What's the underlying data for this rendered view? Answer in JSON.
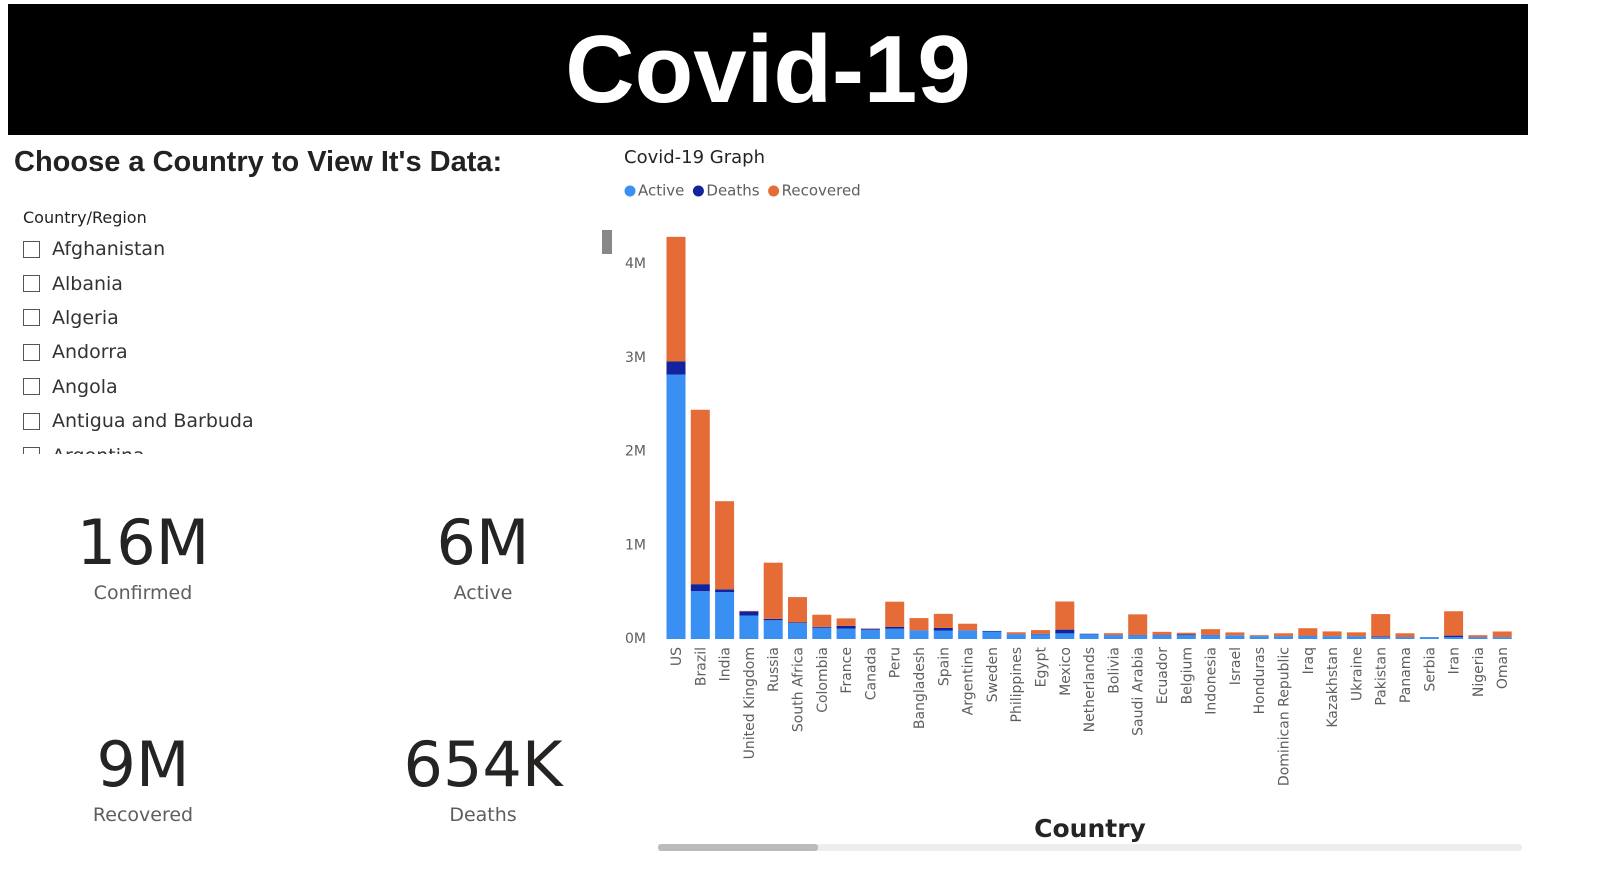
{
  "header": {
    "title": "Covid-19"
  },
  "slicer": {
    "heading": "Choose a Country to View It's Data:",
    "field": "Country/Region",
    "items": [
      "Afghanistan",
      "Albania",
      "Algeria",
      "Andorra",
      "Angola",
      "Antigua and Barbuda",
      "Argentina"
    ]
  },
  "cards": [
    {
      "value": "16M",
      "label": "Confirmed"
    },
    {
      "value": "6M",
      "label": "Active"
    },
    {
      "value": "9M",
      "label": "Recovered"
    },
    {
      "value": "654K",
      "label": "Deaths"
    }
  ],
  "chart_data": {
    "type": "stacked_bar",
    "title": "Covid-19 Graph",
    "x_label": "Country",
    "categories": [
      "US",
      "Brazil",
      "India",
      "United Kingdom",
      "Russia",
      "South Africa",
      "Colombia",
      "France",
      "Canada",
      "Peru",
      "Bangladesh",
      "Spain",
      "Argentina",
      "Sweden",
      "Philippines",
      "Egypt",
      "Mexico",
      "Netherlands",
      "Bolivia",
      "Saudi Arabia",
      "Ecuador",
      "Belgium",
      "Indonesia",
      "Israel",
      "Honduras",
      "Dominican Republic",
      "Iraq",
      "Kazakhstan",
      "Ukraine",
      "Pakistan",
      "Panama",
      "Serbia",
      "Iran",
      "Nigeria",
      "Oman"
    ],
    "series": [
      {
        "name": "Active",
        "color": "#3a8ff3",
        "values": [
          2820000,
          510000,
          500000,
          250000,
          200000,
          170000,
          120000,
          110000,
          100000,
          110000,
          90000,
          90000,
          90000,
          80000,
          50000,
          50000,
          60000,
          50000,
          40000,
          40000,
          40000,
          40000,
          40000,
          40000,
          30000,
          30000,
          30000,
          30000,
          30000,
          20000,
          20000,
          20000,
          20000,
          20000,
          20000
        ]
      },
      {
        "name": "Deaths",
        "color": "#12239e",
        "values": [
          140000,
          75000,
          30000,
          45000,
          14000,
          7000,
          9000,
          30000,
          9000,
          18000,
          3000,
          28000,
          3000,
          6000,
          2000,
          5000,
          40000,
          6000,
          2000,
          3000,
          6000,
          10000,
          5000,
          500,
          1000,
          1000,
          5000,
          1000,
          1000,
          6000,
          1000,
          500,
          16000,
          900,
          400
        ]
      },
      {
        "name": "Recovered",
        "color": "#e66c37",
        "values": [
          1330000,
          1860000,
          940000,
          5000,
          600000,
          270000,
          130000,
          80000,
          5000,
          270000,
          130000,
          150000,
          70000,
          0,
          20000,
          40000,
          300000,
          200,
          20000,
          220000,
          30000,
          17000,
          60000,
          30000,
          10000,
          30000,
          80000,
          50000,
          40000,
          240000,
          40000,
          0,
          260000,
          20000,
          60000
        ]
      }
    ],
    "ylim": [
      0,
      4500000
    ],
    "yticks": [
      {
        "value": 0,
        "label": "0M"
      },
      {
        "value": 1000000,
        "label": "1M"
      },
      {
        "value": 2000000,
        "label": "2M"
      },
      {
        "value": 3000000,
        "label": "3M"
      },
      {
        "value": 4000000,
        "label": "4M"
      }
    ],
    "legend": "top-left"
  }
}
